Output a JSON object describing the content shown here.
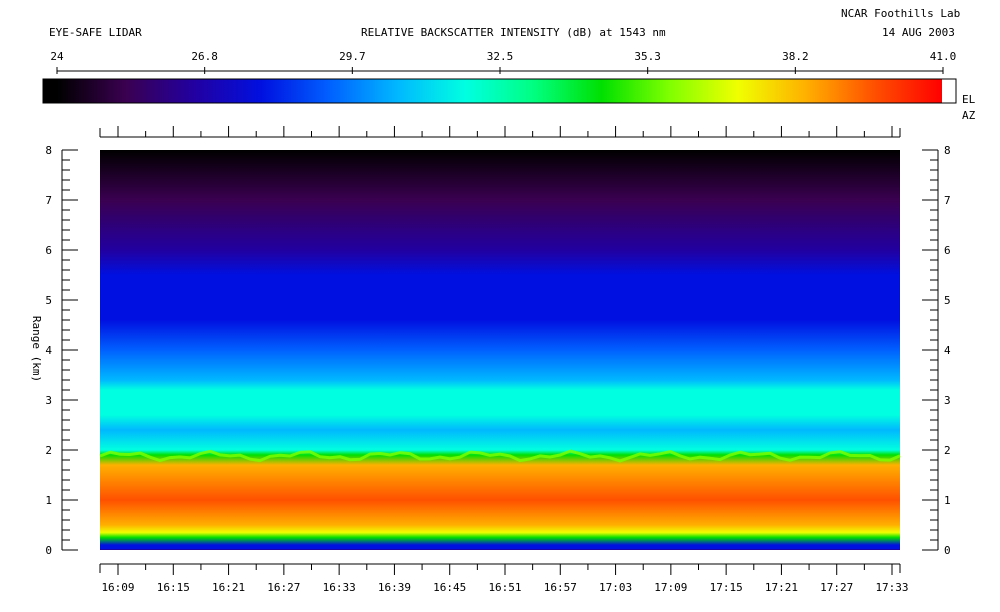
{
  "header": {
    "instrument": "EYE-SAFE LIDAR",
    "title": "RELATIVE BACKSCATTER INTENSITY (dB) at 1543 nm",
    "lab": "NCAR Foothills Lab",
    "date": "14 AUG 2003"
  },
  "colorbar": {
    "tick_labels": [
      "24",
      "26.8",
      "29.7",
      "32.5",
      "35.3",
      "38.2",
      "41.0"
    ],
    "min": 24,
    "max": 41.0,
    "side_labels": [
      "EL",
      "AZ"
    ]
  },
  "chart_data": {
    "type": "heatmap",
    "title": "RELATIVE BACKSCATTER INTENSITY (dB) at 1543 nm",
    "xlabel": "",
    "ylabel": "Range (km)",
    "x_tick_labels": [
      "16:09",
      "16:15",
      "16:21",
      "16:27",
      "16:33",
      "16:39",
      "16:45",
      "16:51",
      "16:57",
      "17:03",
      "17:09",
      "17:15",
      "17:21",
      "17:27",
      "17:33"
    ],
    "y_tick_labels": [
      "0",
      "1",
      "2",
      "3",
      "4",
      "5",
      "6",
      "7",
      "8"
    ],
    "ylim": [
      0,
      8
    ],
    "colorscale": {
      "min_db": 24,
      "max_db": 41.0
    },
    "intensity_profile_db": [
      {
        "range_km": 0.0,
        "db": 26.5
      },
      {
        "range_km": 0.1,
        "db": 28.5
      },
      {
        "range_km": 0.25,
        "db": 34.0
      },
      {
        "range_km": 0.35,
        "db": 37.0
      },
      {
        "range_km": 0.5,
        "db": 39.0
      },
      {
        "range_km": 1.0,
        "db": 39.5
      },
      {
        "range_km": 1.7,
        "db": 39.0
      },
      {
        "range_km": 1.9,
        "db": 34.5
      },
      {
        "range_km": 2.0,
        "db": 31.5
      },
      {
        "range_km": 2.4,
        "db": 30.5
      },
      {
        "range_km": 2.7,
        "db": 31.5
      },
      {
        "range_km": 3.2,
        "db": 32.0
      },
      {
        "range_km": 3.4,
        "db": 30.0
      },
      {
        "range_km": 4.0,
        "db": 29.2
      },
      {
        "range_km": 4.6,
        "db": 28.0
      },
      {
        "range_km": 5.5,
        "db": 28.3
      },
      {
        "range_km": 6.0,
        "db": 26.8
      },
      {
        "range_km": 7.0,
        "db": 25.0
      },
      {
        "range_km": 8.0,
        "db": 24.0
      }
    ],
    "colors": {
      "c0": "#000000",
      "c1": "#3a0050",
      "c2": "#2200a0",
      "c3": "#0010e0",
      "c4": "#0060ff",
      "c5": "#00b8ff",
      "c6": "#00ffe0",
      "c7": "#00ff80",
      "c8": "#00e000",
      "c9": "#80ff00",
      "c10": "#f0ff00",
      "c11": "#ffb000",
      "c12": "#ff5000",
      "c13": "#ff0000",
      "c14": "#ffffff"
    }
  }
}
